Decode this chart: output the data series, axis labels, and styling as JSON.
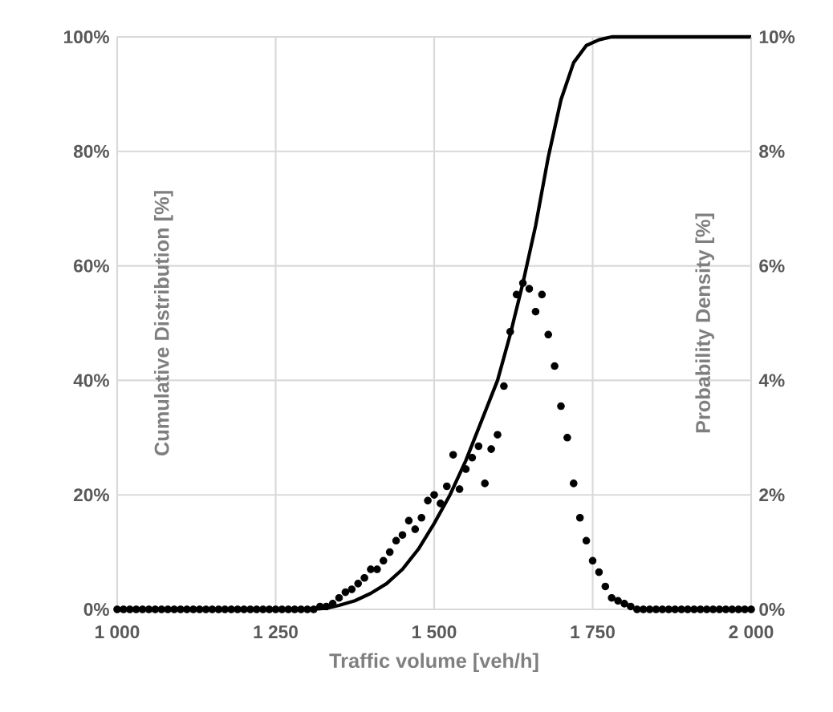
{
  "chart_data": {
    "type": "line",
    "xlabel": "Traffic volume [veh/h]",
    "ylabel": "Cumulative Distribution  [%]",
    "y2label": "Probability Density [%]",
    "xlim": [
      1000,
      2000
    ],
    "xticks": [
      {
        "value": 1000,
        "label": "1 000"
      },
      {
        "value": 1250,
        "label": "1 250"
      },
      {
        "value": 1500,
        "label": "1 500"
      },
      {
        "value": 1750,
        "label": "1 750"
      },
      {
        "value": 2000,
        "label": "2 000"
      }
    ],
    "ylim": [
      0,
      100
    ],
    "yticks": [
      {
        "value": 0,
        "label": "0%"
      },
      {
        "value": 20,
        "label": "20%"
      },
      {
        "value": 40,
        "label": "40%"
      },
      {
        "value": 60,
        "label": "60%"
      },
      {
        "value": 80,
        "label": "80%"
      },
      {
        "value": 100,
        "label": "100%"
      }
    ],
    "y2lim": [
      0,
      10
    ],
    "y2ticks": [
      {
        "value": 0,
        "label": "0%"
      },
      {
        "value": 2,
        "label": "2%"
      },
      {
        "value": 4,
        "label": "4%"
      },
      {
        "value": 6,
        "label": "6%"
      },
      {
        "value": 8,
        "label": "8%"
      },
      {
        "value": 10,
        "label": "10%"
      }
    ],
    "grid": true,
    "series": [
      {
        "color": "#000000",
        "line_style": "solid",
        "marker": "none",
        "x": [
          1000,
          1300,
          1330,
          1350,
          1375,
          1400,
          1425,
          1450,
          1475,
          1500,
          1525,
          1550,
          1575,
          1600,
          1620,
          1640,
          1660,
          1680,
          1700,
          1720,
          1740,
          1760,
          1780,
          2000
        ],
        "values": [
          0,
          0,
          0.2,
          0.7,
          1.5,
          2.8,
          4.5,
          7,
          10.5,
          15,
          20,
          26,
          33,
          40,
          48,
          57,
          67,
          79,
          89,
          95.5,
          98.5,
          99.5,
          100,
          100
        ]
      },
      {
        "type": "scatter",
        "axis": "y2",
        "color": "#000000",
        "marker": "circle",
        "x": [
          1000,
          1010,
          1020,
          1030,
          1040,
          1050,
          1060,
          1070,
          1080,
          1090,
          1100,
          1110,
          1120,
          1130,
          1140,
          1150,
          1160,
          1170,
          1180,
          1190,
          1200,
          1210,
          1220,
          1230,
          1240,
          1250,
          1260,
          1270,
          1280,
          1290,
          1300,
          1310,
          1320,
          1330,
          1340,
          1350,
          1360,
          1370,
          1380,
          1390,
          1400,
          1410,
          1420,
          1430,
          1440,
          1450,
          1460,
          1470,
          1480,
          1490,
          1500,
          1510,
          1520,
          1530,
          1540,
          1550,
          1560,
          1570,
          1580,
          1590,
          1600,
          1610,
          1620,
          1630,
          1640,
          1650,
          1660,
          1670,
          1680,
          1690,
          1700,
          1710,
          1720,
          1730,
          1740,
          1750,
          1760,
          1770,
          1780,
          1790,
          1800,
          1810,
          1820,
          1830,
          1840,
          1850,
          1860,
          1870,
          1880,
          1890,
          1900,
          1910,
          1920,
          1930,
          1940,
          1950,
          1960,
          1970,
          1980,
          1990,
          2000
        ],
        "values": [
          0,
          0,
          0,
          0,
          0,
          0,
          0,
          0,
          0,
          0,
          0,
          0,
          0,
          0,
          0,
          0,
          0,
          0,
          0,
          0,
          0,
          0,
          0,
          0,
          0,
          0,
          0,
          0,
          0,
          0,
          0,
          0,
          0.05,
          0.05,
          0.1,
          0.2,
          0.3,
          0.35,
          0.45,
          0.55,
          0.7,
          0.7,
          0.85,
          1.0,
          1.2,
          1.3,
          1.55,
          1.4,
          1.6,
          1.9,
          2.0,
          1.85,
          2.15,
          2.7,
          2.1,
          2.45,
          2.65,
          2.85,
          2.2,
          2.8,
          3.05,
          3.9,
          4.85,
          5.5,
          5.7,
          5.6,
          5.2,
          5.5,
          4.8,
          4.25,
          3.55,
          3.0,
          2.2,
          1.6,
          1.2,
          0.85,
          0.65,
          0.4,
          0.2,
          0.15,
          0.1,
          0.05,
          0,
          0,
          0,
          0,
          0,
          0,
          0,
          0,
          0,
          0,
          0,
          0,
          0,
          0,
          0,
          0,
          0,
          0,
          0
        ]
      }
    ]
  }
}
